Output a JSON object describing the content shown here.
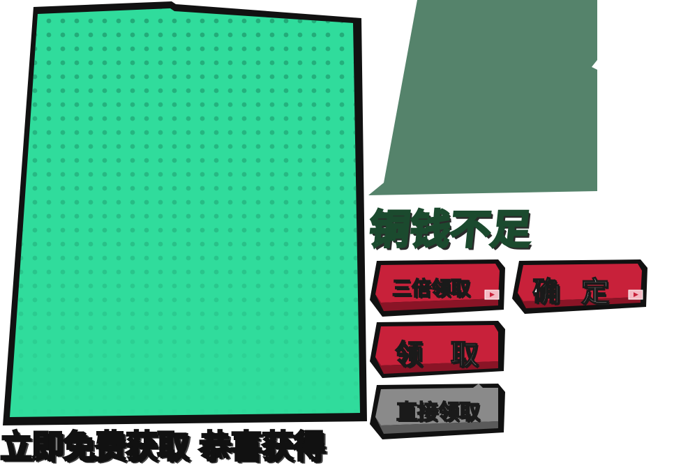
{
  "title": {
    "not_enough_coins": "铜钱不足"
  },
  "buttons": {
    "triple_claim": "三倍领取",
    "confirm": "确 定",
    "claim": "领  取",
    "direct_claim": "直接领取"
  },
  "banner": {
    "text": "立即免费获取 恭喜获得"
  },
  "colors": {
    "panel_green": "#30dc9c",
    "panel_dot": "#22a877",
    "dark_green_panel": "#55836b",
    "button_red": "#c8213a",
    "button_red_dark": "#8a1426",
    "button_gray": "#8a8a8a",
    "outline": "#111111"
  },
  "icons": {
    "video": "video-play-icon"
  }
}
